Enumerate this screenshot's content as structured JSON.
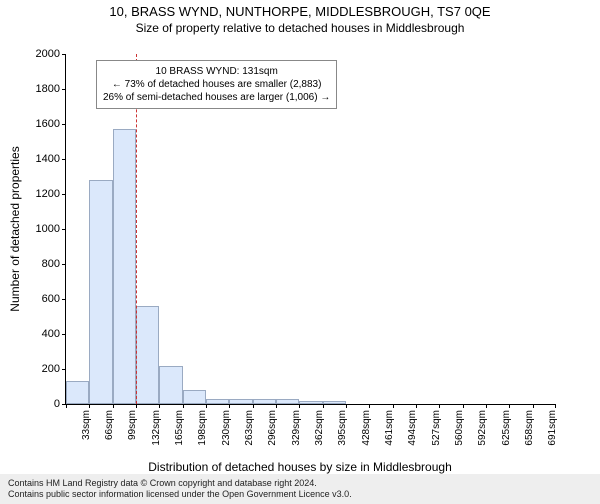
{
  "title_main": "10, BRASS WYND, NUNTHORPE, MIDDLESBROUGH, TS7 0QE",
  "title_sub": "Size of property relative to detached houses in Middlesbrough",
  "ylabel": "Number of detached properties",
  "xlabel": "Distribution of detached houses by size in Middlesbrough",
  "footer_line1": "Contains HM Land Registry data © Crown copyright and database right 2024.",
  "footer_line2": "Contains public sector information licensed under the Open Government Licence v3.0.",
  "info_box": {
    "line1": "10 BRASS WYND: 131sqm",
    "line2": "← 73% of detached houses are smaller (2,883)",
    "line3": "26% of semi-detached houses are larger (1,006) →"
  },
  "chart": {
    "type": "histogram",
    "ylim": [
      0,
      2000
    ],
    "yticks": [
      0,
      200,
      400,
      600,
      800,
      1000,
      1200,
      1400,
      1600,
      1800,
      2000
    ],
    "xtick_labels": [
      "33sqm",
      "66sqm",
      "99sqm",
      "132sqm",
      "165sqm",
      "198sqm",
      "230sqm",
      "263sqm",
      "296sqm",
      "329sqm",
      "362sqm",
      "395sqm",
      "428sqm",
      "461sqm",
      "494sqm",
      "527sqm",
      "560sqm",
      "592sqm",
      "625sqm",
      "658sqm",
      "691sqm"
    ],
    "bar_values": [
      130,
      1280,
      1570,
      560,
      215,
      80,
      30,
      30,
      30,
      30,
      20,
      20,
      0,
      0,
      0,
      0,
      0,
      0,
      0,
      0,
      0
    ],
    "bar_fill": "#dbe8fb",
    "bar_stroke": "#9aaac2",
    "reference_bin_index": 3,
    "reference_color": "#cc3333",
    "plot_bg": "#ffffff"
  }
}
